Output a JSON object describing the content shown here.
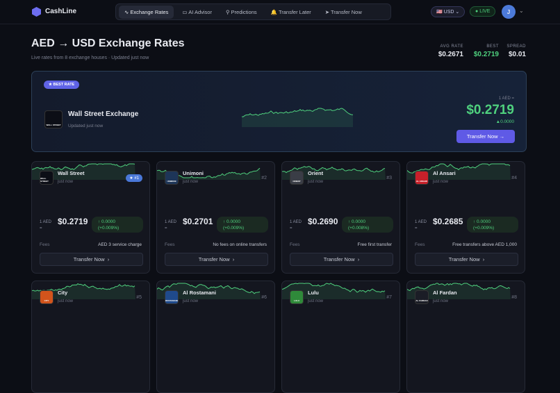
{
  "nav": {
    "brand": "CashLine",
    "tabs": [
      "Exchange Rates",
      "AI Advisor",
      "Predictions",
      "Transfer Later",
      "Transfer Now"
    ],
    "currency": "USD",
    "live": "LIVE",
    "avatar": "J"
  },
  "header": {
    "title": "AED → USD Exchange Rates",
    "subtitle": "Live rates from 8 exchange houses · Updated just now",
    "stats": [
      {
        "label": "AVG RATE",
        "value": "$0.2671"
      },
      {
        "label": "BEST",
        "value": "$0.2719"
      },
      {
        "label": "SPREAD",
        "value": "$0.01"
      }
    ]
  },
  "best": {
    "badge": "BEST RATE",
    "name": "Wall Street Exchange",
    "updated": "Updated just now",
    "unit": "1 AED =",
    "rate": "$0.2719",
    "change": "▲0.0000",
    "button": "Transfer Now",
    "logo": "WALL STREET"
  },
  "cards": [
    {
      "name": "Wall Street",
      "updated": "just now",
      "rank": "#1",
      "logo": "WALL STREET",
      "unit": "1 AED",
      "eq": "=",
      "rate": "$0.2719",
      "change": "↑ 0.0000",
      "pct": "(+0.009%)",
      "fees_label": "Fees",
      "fees": "AED 3 service charge",
      "button": "Transfer Now"
    },
    {
      "name": "Unimoni",
      "updated": "just now",
      "rank": "#2",
      "logo": "UNIMONI",
      "unit": "1 AED",
      "eq": "=",
      "rate": "$0.2701",
      "change": "↑ 0.0000",
      "pct": "(+0.009%)",
      "fees_label": "Fees",
      "fees": "No fees on online transfers",
      "button": "Transfer Now"
    },
    {
      "name": "Orient",
      "updated": "just now",
      "rank": "#3",
      "logo": "ORIENT",
      "unit": "1 AED",
      "eq": "=",
      "rate": "$0.2690",
      "change": "↑ 0.0000",
      "pct": "(+0.008%)",
      "fees_label": "Fees",
      "fees": "Free first transfer",
      "button": "Transfer Now"
    },
    {
      "name": "Al Ansari",
      "updated": "just now",
      "rank": "#4",
      "logo": "AL ANSARI",
      "unit": "1 AED",
      "eq": "=",
      "rate": "$0.2685",
      "change": "↑ 0.0000",
      "pct": "(+0.009%)",
      "fees_label": "Fees",
      "fees": "Free transfers above AED 1,000",
      "button": "Transfer Now"
    },
    {
      "name": "City",
      "updated": "just now",
      "rank": "#5",
      "logo": "CITY"
    },
    {
      "name": "Al Rostamani",
      "updated": "just now",
      "rank": "#6",
      "logo": "ROSTAMANI"
    },
    {
      "name": "Lulu",
      "updated": "just now",
      "rank": "#7",
      "logo": "LULU"
    },
    {
      "name": "Al Fardan",
      "updated": "just now",
      "rank": "#8",
      "logo": "AL FARDAN"
    }
  ]
}
